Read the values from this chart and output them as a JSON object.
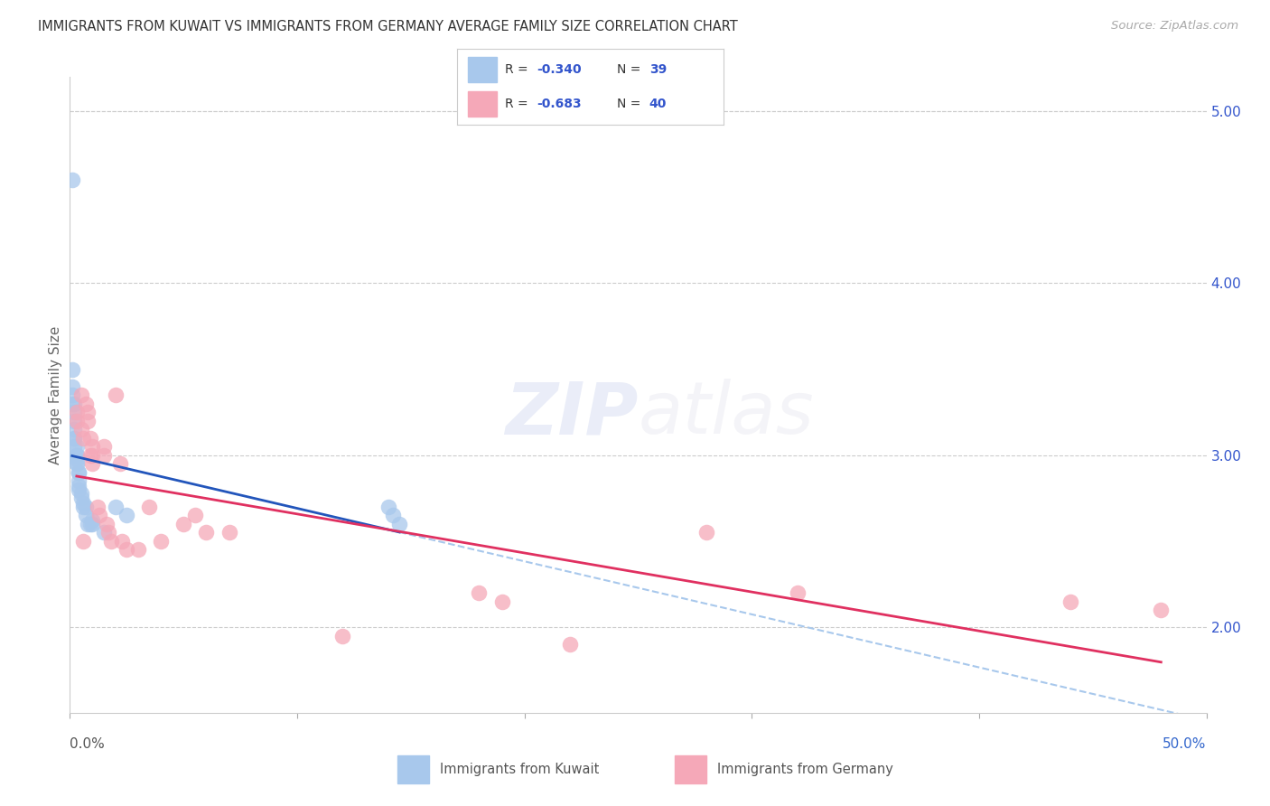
{
  "title": "IMMIGRANTS FROM KUWAIT VS IMMIGRANTS FROM GERMANY AVERAGE FAMILY SIZE CORRELATION CHART",
  "source": "Source: ZipAtlas.com",
  "ylabel": "Average Family Size",
  "ytick_right": [
    2.0,
    3.0,
    4.0,
    5.0
  ],
  "legend_entry1_r": "-0.340",
  "legend_entry1_n": "39",
  "legend_entry2_r": "-0.683",
  "legend_entry2_n": "40",
  "legend_label1": "Immigrants from Kuwait",
  "legend_label2": "Immigrants from Germany",
  "color_kuwait": "#a8c8ec",
  "color_germany": "#f5a8b8",
  "line_color_kuwait": "#2255bb",
  "line_color_germany": "#e03060",
  "line_color_kuwait_dashed": "#a8c8ec",
  "kuwait_points": [
    [
      0.001,
      4.6
    ],
    [
      0.001,
      3.5
    ],
    [
      0.001,
      3.4
    ],
    [
      0.001,
      3.35
    ],
    [
      0.001,
      3.3
    ],
    [
      0.002,
      3.3
    ],
    [
      0.002,
      3.25
    ],
    [
      0.002,
      3.2
    ],
    [
      0.002,
      3.15
    ],
    [
      0.002,
      3.1
    ],
    [
      0.002,
      3.1
    ],
    [
      0.002,
      3.05
    ],
    [
      0.003,
      3.05
    ],
    [
      0.003,
      3.0
    ],
    [
      0.003,
      3.0
    ],
    [
      0.003,
      2.98
    ],
    [
      0.003,
      2.95
    ],
    [
      0.003,
      2.95
    ],
    [
      0.004,
      2.9
    ],
    [
      0.004,
      2.9
    ],
    [
      0.004,
      2.85
    ],
    [
      0.004,
      2.82
    ],
    [
      0.004,
      2.8
    ],
    [
      0.005,
      2.78
    ],
    [
      0.005,
      2.75
    ],
    [
      0.006,
      2.72
    ],
    [
      0.006,
      2.7
    ],
    [
      0.007,
      2.65
    ],
    [
      0.007,
      2.7
    ],
    [
      0.008,
      2.6
    ],
    [
      0.009,
      2.6
    ],
    [
      0.01,
      2.62
    ],
    [
      0.01,
      2.6
    ],
    [
      0.015,
      2.55
    ],
    [
      0.02,
      2.7
    ],
    [
      0.025,
      2.65
    ],
    [
      0.14,
      2.7
    ],
    [
      0.142,
      2.65
    ],
    [
      0.145,
      2.6
    ]
  ],
  "germany_points": [
    [
      0.003,
      3.25
    ],
    [
      0.003,
      3.2
    ],
    [
      0.005,
      3.35
    ],
    [
      0.005,
      3.15
    ],
    [
      0.006,
      3.1
    ],
    [
      0.006,
      2.5
    ],
    [
      0.007,
      3.3
    ],
    [
      0.008,
      3.25
    ],
    [
      0.008,
      3.2
    ],
    [
      0.009,
      3.1
    ],
    [
      0.009,
      3.0
    ],
    [
      0.01,
      3.05
    ],
    [
      0.01,
      3.0
    ],
    [
      0.01,
      2.95
    ],
    [
      0.012,
      2.7
    ],
    [
      0.013,
      2.65
    ],
    [
      0.015,
      3.05
    ],
    [
      0.015,
      3.0
    ],
    [
      0.016,
      2.6
    ],
    [
      0.017,
      2.55
    ],
    [
      0.018,
      2.5
    ],
    [
      0.02,
      3.35
    ],
    [
      0.022,
      2.95
    ],
    [
      0.023,
      2.5
    ],
    [
      0.025,
      2.45
    ],
    [
      0.03,
      2.45
    ],
    [
      0.035,
      2.7
    ],
    [
      0.04,
      2.5
    ],
    [
      0.05,
      2.6
    ],
    [
      0.055,
      2.65
    ],
    [
      0.06,
      2.55
    ],
    [
      0.07,
      2.55
    ],
    [
      0.12,
      1.95
    ],
    [
      0.18,
      2.2
    ],
    [
      0.19,
      2.15
    ],
    [
      0.22,
      1.9
    ],
    [
      0.28,
      2.55
    ],
    [
      0.32,
      2.2
    ],
    [
      0.44,
      2.15
    ],
    [
      0.48,
      2.1
    ]
  ],
  "xmin": 0.0,
  "xmax": 0.5,
  "ymin": 1.5,
  "ymax": 5.2
}
